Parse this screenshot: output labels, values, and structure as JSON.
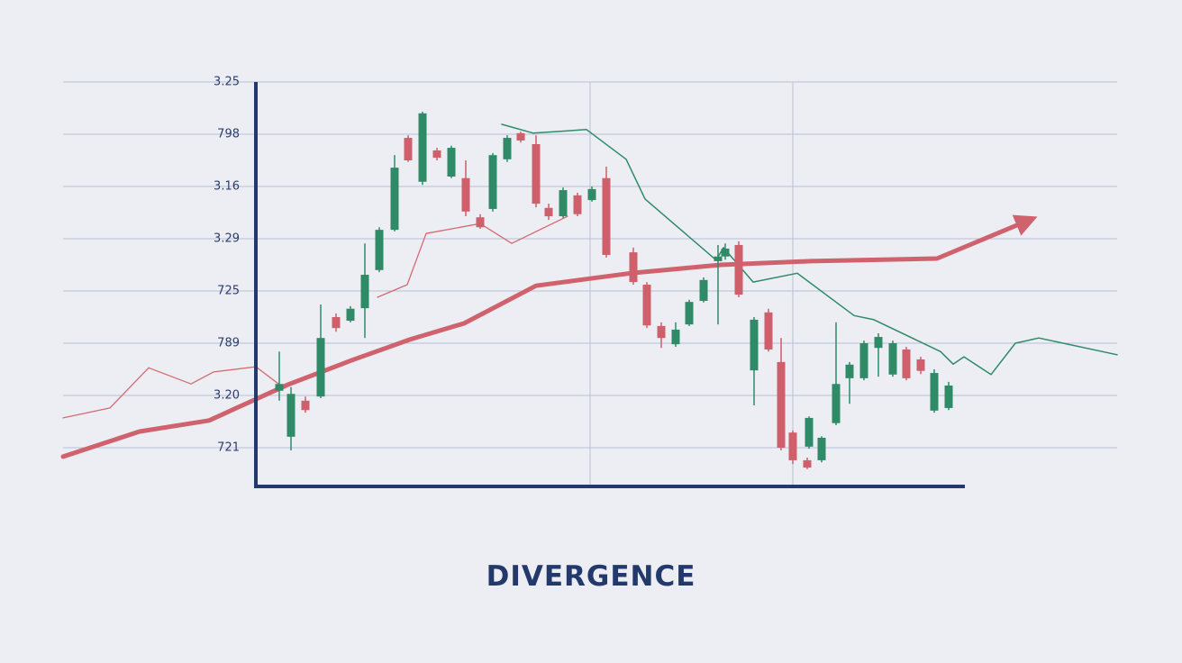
{
  "chart_data": {
    "type": "candlestick",
    "title": "DIVERGENCE",
    "xlim": [
      0,
      117
    ],
    "ylim": [
      -0.75,
      7
    ],
    "xticks": [
      58.5,
      81.0
    ],
    "yticks": [
      {
        "value": 7,
        "label": "3.25"
      },
      {
        "value": 6,
        "label": "798"
      },
      {
        "value": 5,
        "label": "3.16"
      },
      {
        "value": 4,
        "label": "3.29"
      },
      {
        "value": 3,
        "label": "725"
      },
      {
        "value": 2,
        "label": "789"
      },
      {
        "value": 1,
        "label": "3.20"
      },
      {
        "value": 0,
        "label": "721"
      }
    ],
    "grid": true,
    "up_color": "#2f8a68",
    "down_color": "#cf5f6b",
    "x": [
      24.0,
      25.3,
      26.9,
      28.6,
      30.3,
      31.9,
      33.5,
      35.1,
      36.8,
      38.3,
      39.9,
      41.5,
      43.1,
      44.7,
      46.3,
      47.7,
      49.3,
      50.8,
      52.5,
      53.9,
      55.5,
      57.1,
      58.7,
      60.3,
      63.3,
      64.8,
      66.4,
      68.0,
      69.5,
      71.1,
      72.7,
      73.5,
      75.0,
      76.7,
      78.3,
      79.7,
      81.0,
      82.6,
      82.8,
      84.2,
      85.8,
      87.3,
      88.9,
      90.5,
      92.1,
      93.6,
      95.2,
      96.7,
      98.3
    ],
    "open": [
      1.09,
      0.21,
      0.9,
      0.98,
      2.5,
      2.43,
      2.67,
      3.4,
      4.17,
      5.93,
      5.09,
      5.69,
      5.19,
      5.16,
      4.41,
      4.57,
      5.52,
      6.02,
      5.81,
      4.59,
      4.43,
      4.83,
      4.74,
      5.16,
      3.74,
      3.12,
      2.33,
      1.98,
      2.36,
      2.81,
      3.57,
      3.66,
      3.88,
      1.48,
      2.59,
      1.64,
      0.29,
      -0.24,
      0.02,
      -0.24,
      0.47,
      1.33,
      1.33,
      1.91,
      1.4,
      1.88,
      1.69,
      0.71,
      0.76
    ],
    "high": [
      1.84,
      1.16,
      0.98,
      2.74,
      2.57,
      2.71,
      3.91,
      4.22,
      5.6,
      5.98,
      6.43,
      5.74,
      5.78,
      5.5,
      4.47,
      5.64,
      5.98,
      6.05,
      5.98,
      4.67,
      4.98,
      4.88,
      5.0,
      5.38,
      3.83,
      3.17,
      2.4,
      2.4,
      2.83,
      3.26,
      3.88,
      3.91,
      3.95,
      2.5,
      2.66,
      2.1,
      0.33,
      -0.19,
      0.6,
      0.22,
      2.4,
      1.64,
      2.05,
      2.19,
      2.05,
      1.93,
      1.74,
      1.5,
      1.26
    ],
    "low": [
      0.9,
      -0.05,
      0.67,
      0.95,
      2.22,
      2.4,
      2.1,
      3.36,
      4.14,
      5.47,
      5.03,
      5.5,
      5.16,
      4.43,
      4.19,
      4.52,
      5.47,
      5.84,
      4.6,
      4.36,
      4.4,
      4.43,
      4.71,
      3.64,
      3.12,
      2.29,
      1.91,
      1.93,
      2.33,
      2.78,
      2.36,
      3.6,
      2.88,
      0.81,
      1.84,
      -0.05,
      -0.31,
      -0.41,
      -0.02,
      -0.28,
      0.43,
      0.84,
      1.29,
      1.36,
      1.36,
      1.29,
      1.41,
      0.67,
      0.72
    ],
    "close": [
      1.22,
      1.03,
      0.72,
      2.1,
      2.29,
      2.66,
      3.31,
      4.17,
      5.36,
      5.5,
      6.4,
      5.55,
      5.74,
      4.52,
      4.22,
      5.6,
      5.93,
      5.88,
      4.67,
      4.43,
      4.93,
      4.47,
      4.95,
      3.69,
      3.17,
      2.34,
      2.1,
      2.26,
      2.79,
      3.21,
      3.66,
      3.81,
      2.93,
      2.45,
      1.88,
      0.0,
      -0.24,
      -0.38,
      0.57,
      0.19,
      1.22,
      1.59,
      2.0,
      2.12,
      2.0,
      1.33,
      1.47,
      1.43,
      1.19
    ],
    "lines": [
      {
        "color": "#d36a72",
        "width": 1.3,
        "x": [
          0,
          5.2,
          9.5,
          14.2,
          16.7,
          21.4,
          24.0,
          null,
          34.9,
          38.2,
          40.3,
          46.3,
          49.8,
          56.0
        ],
        "values": [
          0.57,
          0.76,
          1.53,
          1.22,
          1.45,
          1.55,
          1.21,
          null,
          2.88,
          3.12,
          4.1,
          4.29,
          3.91,
          4.43
        ]
      },
      {
        "color": "#2f8a68",
        "width": 1.5,
        "x": [
          48.7,
          52.2,
          58.1,
          62.5,
          64.6,
          72.5,
          73.3,
          76.6,
          81.5,
          87.8,
          90.0,
          97.4,
          98.8,
          100.0,
          103.0,
          105.7,
          108.3,
          117.0
        ],
        "values": [
          6.19,
          6.02,
          6.09,
          5.52,
          4.76,
          3.59,
          3.83,
          3.17,
          3.34,
          2.53,
          2.45,
          1.84,
          1.6,
          1.74,
          1.4,
          2.0,
          2.1,
          1.78
        ]
      },
      {
        "color": "#d0626d",
        "width": 5,
        "arrow": true,
        "x": [
          0,
          8.5,
          16.2,
          25.0,
          32.0,
          38.5,
          44.5,
          52.5,
          63.0,
          73.0,
          83.0,
          97.0,
          107.0
        ],
        "values": [
          -0.17,
          0.31,
          0.52,
          1.21,
          1.67,
          2.07,
          2.38,
          3.1,
          3.34,
          3.5,
          3.57,
          3.62,
          4.34
        ]
      }
    ]
  }
}
